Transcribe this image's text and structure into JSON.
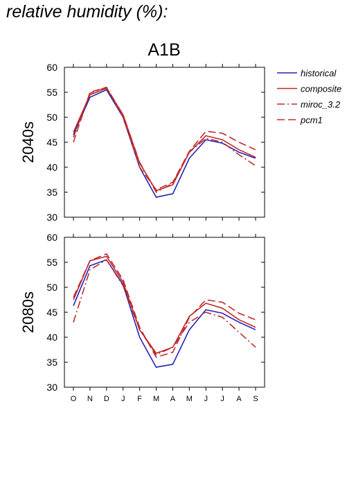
{
  "header": "relative humidity (%):",
  "chart_data": {
    "type": "line",
    "title": "A1B",
    "categories": [
      "O",
      "N",
      "D",
      "J",
      "F",
      "M",
      "A",
      "M",
      "J",
      "J",
      "A",
      "S"
    ],
    "ylim": [
      30,
      60
    ],
    "yticks": [
      30,
      35,
      40,
      45,
      50,
      55,
      60
    ],
    "legend": {
      "placement": "right",
      "entries": [
        {
          "name": "historical",
          "color": "#2222bb",
          "dash": "solid"
        },
        {
          "name": "composite",
          "color": "#c0292a",
          "dash": "solid"
        },
        {
          "name": "miroc_3.2",
          "color": "#c0292a",
          "dash": "dashdot"
        },
        {
          "name": "pcm1",
          "color": "#c0292a",
          "dash": "dashed"
        }
      ]
    },
    "panels": [
      {
        "label": "2040s",
        "series": [
          {
            "name": "historical",
            "values": [
              46.5,
              54.0,
              55.5,
              50.0,
              40.0,
              34.0,
              34.7,
              41.8,
              45.5,
              44.8,
              43.0,
              41.8
            ]
          },
          {
            "name": "composite",
            "values": [
              47.0,
              54.5,
              55.8,
              50.5,
              40.8,
              35.3,
              36.5,
              43.0,
              46.3,
              45.5,
              43.5,
              42.0
            ]
          },
          {
            "name": "miroc_3.2",
            "values": [
              46.0,
              54.8,
              56.0,
              50.5,
              41.0,
              35.0,
              36.8,
              43.0,
              45.8,
              45.0,
              42.5,
              40.3
            ]
          },
          {
            "name": "pcm1",
            "values": [
              45.0,
              55.0,
              56.0,
              50.0,
              40.0,
              35.5,
              37.0,
              43.2,
              47.2,
              46.8,
              45.0,
              43.5
            ]
          }
        ]
      },
      {
        "label": "2080s",
        "series": [
          {
            "name": "historical",
            "values": [
              46.3,
              54.3,
              55.5,
              50.5,
              40.0,
              34.0,
              34.6,
              41.5,
              45.5,
              44.8,
              43.0,
              41.5
            ]
          },
          {
            "name": "composite",
            "values": [
              47.5,
              55.3,
              56.2,
              51.0,
              41.5,
              36.8,
              38.0,
              44.2,
              46.8,
              45.8,
              43.5,
              42.0
            ]
          },
          {
            "name": "miroc_3.2",
            "values": [
              43.0,
              53.5,
              55.5,
              50.3,
              41.5,
              36.5,
              38.0,
              43.0,
              45.0,
              44.0,
              41.0,
              38.0
            ]
          },
          {
            "name": "pcm1",
            "values": [
              48.0,
              55.3,
              56.7,
              51.5,
              42.0,
              36.0,
              37.0,
              44.0,
              47.5,
              47.0,
              44.8,
              43.5
            ]
          }
        ]
      }
    ]
  }
}
